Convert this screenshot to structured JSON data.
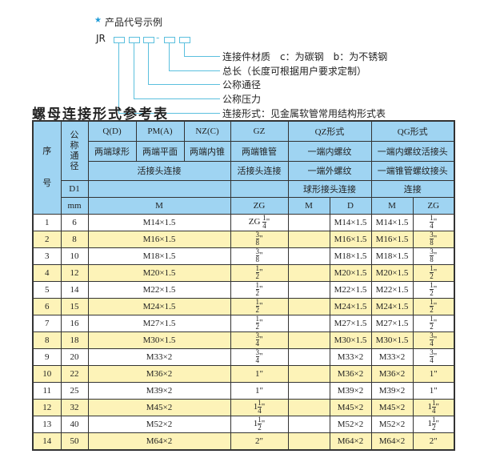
{
  "example": {
    "star": "★",
    "title": "产品代号示例",
    "code": "JR",
    "dash": "-",
    "labels": [
      "连接件材质　c：为碳钢　b：为不锈钢",
      "总长（长度可根据用户要求定制）",
      "公称通径",
      "公称压力",
      "连接形式：见金属软管常用结构形式表"
    ]
  },
  "table_title": "螺母连接形式参考表",
  "header": {
    "seq": "序号",
    "dn": "公称通径",
    "d1": "D1",
    "mm": "mm",
    "types": [
      "Q(D)",
      "PM(A)",
      "NZ(C)",
      "GZ",
      "QZ形式",
      "QG形式"
    ],
    "shapes": [
      "两端球形",
      "两端平面",
      "两端内锥",
      "两端锥管",
      "一端内螺纹",
      "一端内螺纹活接头"
    ],
    "row3": [
      "活接头连接",
      "活接头连接",
      "一端外螺纹",
      "一端锥管螺纹接头"
    ],
    "row4": [
      "球形接头连接",
      "连接"
    ],
    "units": [
      "M",
      "ZG",
      "M",
      "D",
      "M",
      "ZG"
    ]
  },
  "rows": [
    {
      "no": "1",
      "dn": "6",
      "m": "M14×1.5",
      "zg": {
        "pre": "ZG ",
        "w": "",
        "n": "1",
        "d": "4"
      },
      "qzm": "",
      "qzd": "M14×1.5",
      "qgm": "M14×1.5",
      "qgzg": {
        "w": "",
        "n": "1",
        "d": "4"
      }
    },
    {
      "no": "2",
      "dn": "8",
      "m": "M16×1.5",
      "zg": {
        "w": "",
        "n": "3",
        "d": "8"
      },
      "qzm": "",
      "qzd": "M16×1.5",
      "qgm": "M16×1.5",
      "qgzg": {
        "w": "",
        "n": "3",
        "d": "8"
      }
    },
    {
      "no": "3",
      "dn": "10",
      "m": "M18×1.5",
      "zg": {
        "w": "",
        "n": "3",
        "d": "8"
      },
      "qzm": "",
      "qzd": "M18×1.5",
      "qgm": "M18×1.5",
      "qgzg": {
        "w": "",
        "n": "3",
        "d": "8"
      }
    },
    {
      "no": "4",
      "dn": "12",
      "m": "M20×1.5",
      "zg": {
        "w": "",
        "n": "1",
        "d": "2"
      },
      "qzm": "",
      "qzd": "M20×1.5",
      "qgm": "M20×1.5",
      "qgzg": {
        "w": "",
        "n": "1",
        "d": "2"
      }
    },
    {
      "no": "5",
      "dn": "14",
      "m": "M22×1.5",
      "zg": {
        "w": "",
        "n": "1",
        "d": "2"
      },
      "qzm": "",
      "qzd": "M22×1.5",
      "qgm": "M22×1.5",
      "qgzg": {
        "w": "",
        "n": "1",
        "d": "2"
      }
    },
    {
      "no": "6",
      "dn": "15",
      "m": "M24×1.5",
      "zg": {
        "w": "",
        "n": "1",
        "d": "2"
      },
      "qzm": "",
      "qzd": "M24×1.5",
      "qgm": "M24×1.5",
      "qgzg": {
        "w": "",
        "n": "1",
        "d": "2"
      }
    },
    {
      "no": "7",
      "dn": "16",
      "m": "M27×1.5",
      "zg": {
        "w": "",
        "n": "1",
        "d": "2"
      },
      "qzm": "",
      "qzd": "M27×1.5",
      "qgm": "M27×1.5",
      "qgzg": {
        "w": "",
        "n": "1",
        "d": "2"
      }
    },
    {
      "no": "8",
      "dn": "18",
      "m": "M30×1.5",
      "zg": {
        "w": "",
        "n": "3",
        "d": "4"
      },
      "qzm": "",
      "qzd": "M30×1.5",
      "qgm": "M30×1.5",
      "qgzg": {
        "w": "",
        "n": "3",
        "d": "4"
      }
    },
    {
      "no": "9",
      "dn": "20",
      "m": "M33×2",
      "zg": {
        "w": "",
        "n": "3",
        "d": "4"
      },
      "qzm": "",
      "qzd": "M33×2",
      "qgm": "M33×2",
      "qgzg": {
        "w": "",
        "n": "3",
        "d": "4"
      }
    },
    {
      "no": "10",
      "dn": "22",
      "m": "M36×2",
      "zg": {
        "w": "1",
        "n": "",
        "d": ""
      },
      "qzm": "",
      "qzd": "M36×2",
      "qgm": "M36×2",
      "qgzg": {
        "w": "1",
        "n": "",
        "d": ""
      }
    },
    {
      "no": "11",
      "dn": "25",
      "m": "M39×2",
      "zg": {
        "w": "1",
        "n": "",
        "d": ""
      },
      "qzm": "",
      "qzd": "M39×2",
      "qgm": "M39×2",
      "qgzg": {
        "w": "1",
        "n": "",
        "d": ""
      }
    },
    {
      "no": "12",
      "dn": "32",
      "m": "M45×2",
      "zg": {
        "w": "1",
        "n": "1",
        "d": "4"
      },
      "qzm": "",
      "qzd": "M45×2",
      "qgm": "M45×2",
      "qgzg": {
        "w": "1",
        "n": "1",
        "d": "4"
      }
    },
    {
      "no": "13",
      "dn": "40",
      "m": "M52×2",
      "zg": {
        "w": "1",
        "n": "1",
        "d": "2"
      },
      "qzm": "",
      "qzd": "M52×2",
      "qgm": "M52×2",
      "qgzg": {
        "w": "1",
        "n": "1",
        "d": "2"
      }
    },
    {
      "no": "14",
      "dn": "50",
      "m": "M64×2",
      "zg": {
        "w": "2",
        "n": "",
        "d": ""
      },
      "qzm": "",
      "qzd": "M64×2",
      "qgm": "M64×2",
      "qgzg": {
        "w": "2",
        "n": "",
        "d": ""
      }
    }
  ],
  "colors": {
    "header": "#9fd4f2",
    "stripe": "#fdf3b8",
    "accent": "#5bc0de"
  }
}
